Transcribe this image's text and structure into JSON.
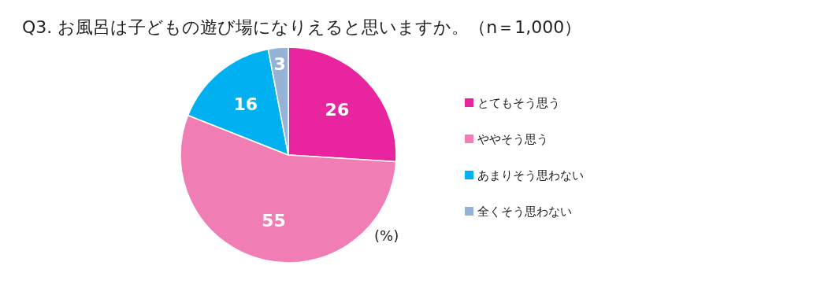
{
  "chart_data": {
    "type": "pie",
    "title": "Q3. お風呂は子どもの遊び場になりえると思いますか。（n＝1,000）",
    "categories": [
      "とてもそう思う",
      "ややそう思う",
      "あまりそう思わない",
      "全くそう思わない"
    ],
    "values": [
      26,
      55,
      16,
      3
    ],
    "colors": [
      "#e8259f",
      "#f07db3",
      "#00b0f0",
      "#95b3d7"
    ],
    "data_labels": true,
    "legend": "right",
    "annotations": [
      "(%)"
    ]
  }
}
